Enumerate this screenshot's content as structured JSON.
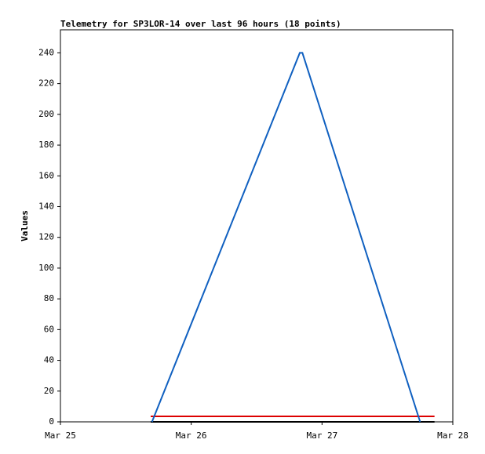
{
  "chart_data": {
    "type": "line",
    "title": "Telemetry for SP3LOR-14 over last 96 hours (18 points)",
    "ylabel": "Values",
    "xlim": [
      25,
      28
    ],
    "xticks": [
      {
        "value": 25,
        "label": "Mar 25"
      },
      {
        "value": 26,
        "label": "Mar 26"
      },
      {
        "value": 27,
        "label": "Mar 27"
      },
      {
        "value": 28,
        "label": "Mar 28"
      }
    ],
    "ylim": [
      0,
      255
    ],
    "yticks": [
      0,
      20,
      40,
      60,
      80,
      100,
      120,
      140,
      160,
      180,
      200,
      220,
      240
    ],
    "series": [
      {
        "color": "#000000",
        "x": [
          25.69,
          27.86
        ],
        "values": [
          0,
          0
        ]
      },
      {
        "color": "#dd0000",
        "x": [
          25.69,
          27.86
        ],
        "values": [
          3.6,
          3.6
        ]
      },
      {
        "color": "#1060c0",
        "x": [
          25.7,
          26.83,
          26.85,
          27.75
        ],
        "values": [
          0,
          240,
          240,
          0
        ]
      }
    ]
  }
}
